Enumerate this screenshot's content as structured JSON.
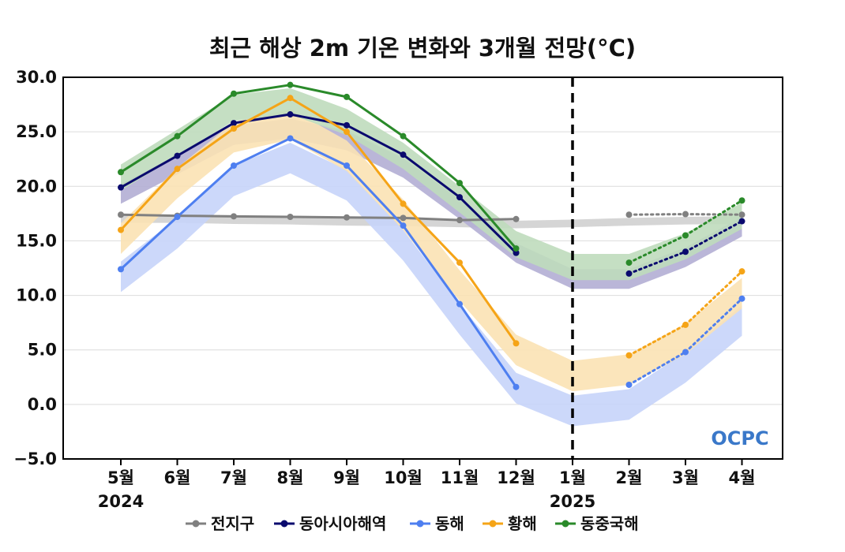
{
  "chart_data": {
    "type": "line",
    "title": "최근 해상 2m 기온 변화와 3개월 전망(°C)",
    "categories": [
      "5월",
      "6월",
      "7월",
      "8월",
      "9월",
      "10월",
      "11월",
      "12월",
      "1월",
      "2월",
      "3월",
      "4월"
    ],
    "year_labels": [
      {
        "category": "5월",
        "text": "2024"
      },
      {
        "category": "1월",
        "text": "2025"
      }
    ],
    "forecast_divider_at": "1월",
    "ylim": [
      -5.0,
      30.0
    ],
    "yticks": [
      "30.0",
      "25.0",
      "20.0",
      "15.0",
      "10.0",
      "5.0",
      "0.0",
      "−5.0"
    ],
    "ytick_values": [
      30,
      25,
      20,
      15,
      10,
      5,
      0,
      -5
    ],
    "grid": "horizontal",
    "legend_position": "bottom",
    "logo": "OCPC",
    "series": [
      {
        "name": "전지구",
        "color": "#808080",
        "observed": [
          17.4,
          17.3,
          17.25,
          17.2,
          17.15,
          17.1,
          16.9,
          17.0,
          null,
          null,
          null,
          null
        ],
        "forecast": [
          null,
          null,
          null,
          null,
          null,
          null,
          null,
          null,
          null,
          17.4,
          17.45,
          17.4
        ],
        "normal": [
          17.0,
          17.0,
          16.9,
          16.85,
          16.75,
          16.7,
          16.6,
          16.5,
          16.6,
          16.75,
          16.85,
          16.9
        ],
        "normal_width": 0.35,
        "band_color": "#d0d0d0"
      },
      {
        "name": "동아시아해역",
        "color": "#0a0a6e",
        "observed": [
          19.9,
          22.8,
          25.8,
          26.6,
          25.6,
          22.9,
          19.0,
          13.9,
          null,
          null,
          null,
          null
        ],
        "forecast": [
          null,
          null,
          null,
          null,
          null,
          null,
          null,
          13.9,
          null,
          12.0,
          14.0,
          16.8
        ],
        "normal": [
          19.3,
          22.0,
          24.7,
          25.3,
          24.2,
          21.7,
          17.9,
          13.9,
          11.5,
          11.5,
          13.5,
          16.3
        ],
        "normal_width": 0.9,
        "band_color": "#b3aed4"
      },
      {
        "name": "동해",
        "color": "#4e7ff0",
        "observed": [
          12.4,
          17.2,
          21.9,
          24.4,
          21.9,
          16.4,
          9.2,
          1.6,
          null,
          null,
          null,
          null
        ],
        "forecast": [
          null,
          null,
          null,
          null,
          null,
          null,
          null,
          null,
          null,
          1.8,
          4.8,
          9.7
        ],
        "normal": [
          11.7,
          15.7,
          20.5,
          22.6,
          20.1,
          14.6,
          7.8,
          1.5,
          -0.6,
          0.0,
          3.4,
          7.7
        ],
        "normal_width": 1.4,
        "band_color": "#c6d4fa"
      },
      {
        "name": "황해",
        "color": "#f5a417",
        "observed": [
          16.0,
          21.6,
          25.3,
          28.1,
          25.0,
          18.4,
          13.0,
          5.6,
          null,
          null,
          null,
          null
        ],
        "forecast": [
          null,
          null,
          null,
          null,
          null,
          null,
          null,
          null,
          null,
          4.5,
          7.3,
          12.2
        ],
        "normal": [
          15.2,
          20.3,
          24.5,
          25.7,
          22.8,
          17.4,
          10.9,
          5.0,
          2.6,
          3.2,
          6.0,
          10.2
        ],
        "normal_width": 1.4,
        "band_color": "#fbe2b4"
      },
      {
        "name": "동중국해",
        "color": "#2a8a2a",
        "observed": [
          21.3,
          24.6,
          28.5,
          29.3,
          28.2,
          24.6,
          20.3,
          14.3,
          null,
          null,
          null,
          null
        ],
        "forecast": [
          null,
          null,
          null,
          null,
          null,
          null,
          null,
          null,
          null,
          13.0,
          15.5,
          18.7
        ],
        "normal": [
          20.8,
          24.0,
          27.2,
          27.8,
          25.9,
          22.8,
          18.8,
          14.7,
          12.6,
          12.6,
          14.5,
          17.3
        ],
        "normal_width": 1.2,
        "band_color": "#bfdcbc"
      }
    ]
  }
}
